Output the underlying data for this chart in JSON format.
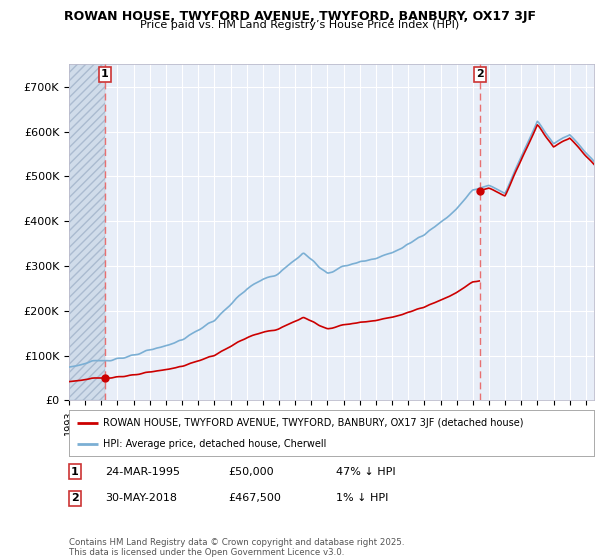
{
  "title": "ROWAN HOUSE, TWYFORD AVENUE, TWYFORD, BANBURY, OX17 3JF",
  "subtitle": "Price paid vs. HM Land Registry’s House Price Index (HPI)",
  "ytick_labels": [
    "£0",
    "£100K",
    "£200K",
    "£300K",
    "£400K",
    "£500K",
    "£600K",
    "£700K"
  ],
  "yticks": [
    0,
    100000,
    200000,
    300000,
    400000,
    500000,
    600000,
    700000
  ],
  "ylim": [
    0,
    750000
  ],
  "xmin": 1993,
  "xmax": 2025.5,
  "hpi_color": "#7bafd4",
  "price_color": "#cc0000",
  "dashed_color": "#e87070",
  "background_plot": "#e8eef8",
  "background_hatch": "#d0dcea",
  "sale1_year": 1995.23,
  "sale1_price": 50000,
  "sale2_year": 2018.42,
  "sale2_price": 467500,
  "legend_label1": "ROWAN HOUSE, TWYFORD AVENUE, TWYFORD, BANBURY, OX17 3JF (detached house)",
  "legend_label2": "HPI: Average price, detached house, Cherwell",
  "note1_label": "1",
  "note1_date": "24-MAR-1995",
  "note1_price": "£50,000",
  "note1_hpi": "47% ↓ HPI",
  "note2_label": "2",
  "note2_date": "30-MAY-2018",
  "note2_price": "£467,500",
  "note2_hpi": "1% ↓ HPI",
  "footer": "Contains HM Land Registry data © Crown copyright and database right 2025.\nThis data is licensed under the Open Government Licence v3.0."
}
